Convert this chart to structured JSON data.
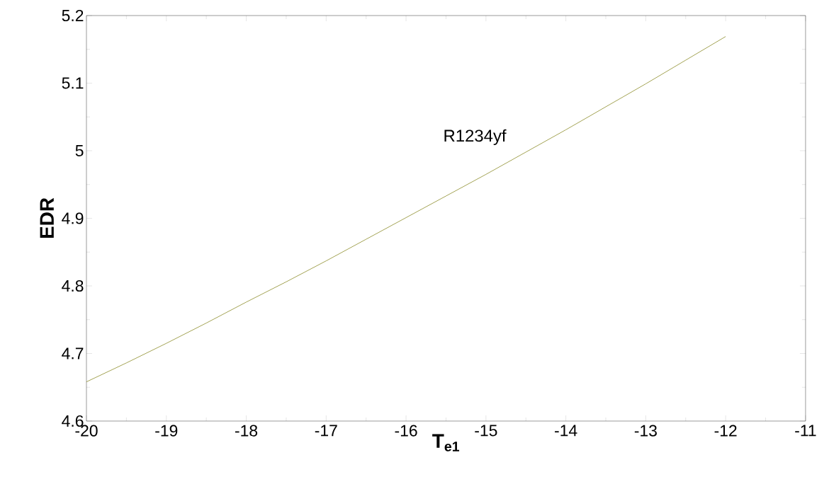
{
  "chart_data": {
    "type": "line",
    "xlabel": "T$_{e1}$",
    "ylabel": "EDR",
    "x": [
      -20,
      -19.5,
      -19,
      -18.5,
      -18,
      -17.5,
      -17,
      -16.5,
      -16,
      -15.5,
      -15,
      -14.5,
      -14,
      -13.5,
      -13,
      -12.5,
      -12
    ],
    "series": [
      {
        "name": "R1234yf",
        "color": "#8c8c28",
        "values": [
          4.658,
          4.686,
          4.715,
          4.745,
          4.776,
          4.806,
          4.837,
          4.869,
          4.901,
          4.933,
          4.965,
          4.998,
          5.031,
          5.065,
          5.099,
          5.134,
          5.169
        ]
      }
    ],
    "xlim": [
      -20,
      -11
    ],
    "xticks": [
      -20,
      -19,
      -18,
      -17,
      -16,
      -15,
      -14,
      -13,
      -12,
      -11
    ],
    "ylim": [
      4.6,
      5.2
    ],
    "yticks": [
      {
        "value": 4.6,
        "label": "4.6"
      },
      {
        "value": 4.7,
        "label": "4.7"
      },
      {
        "value": 4.8,
        "label": "4.8"
      },
      {
        "value": 4.9,
        "label": "4.9"
      },
      {
        "value": 5,
        "label": "5"
      },
      {
        "value": 5.1,
        "label": "5.1"
      },
      {
        "value": 5.2,
        "label": "5.2"
      }
    ],
    "grid": false,
    "legend": false,
    "marker": "none",
    "line_style": "solid"
  }
}
